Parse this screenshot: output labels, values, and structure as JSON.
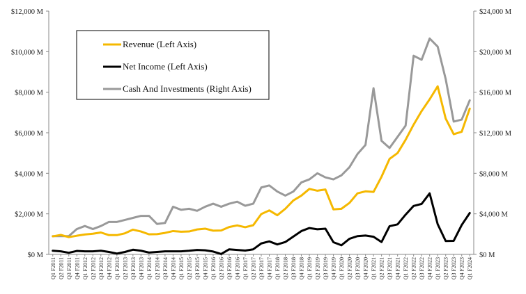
{
  "chart_data": {
    "type": "line",
    "title": "",
    "xlabel": "",
    "ylabel": "",
    "y2label": "",
    "categories": [
      "Q1 F2011",
      "Q2 F2011",
      "Q3 F2011",
      "Q4 F2011",
      "Q1 F2012",
      "Q2 F2012",
      "Q3 F2012",
      "Q4 F2012",
      "Q1 F2013",
      "Q2 F2013",
      "Q3 F2013",
      "Q4 F2013",
      "Q1 F2014",
      "Q2 F2014",
      "Q3 F2014",
      "Q4 F2014",
      "Q1 F2015",
      "Q2 F2015",
      "Q3 F2015",
      "Q4 F2015",
      "Q1 F2016",
      "Q2 F2016",
      "Q3 F2016",
      "Q4 F2016",
      "Q1 F2017",
      "Q2 F2017",
      "Q3 F2017",
      "Q4 F2017",
      "Q1 F2018",
      "Q2 F2018",
      "Q3 F2018",
      "Q4 F2018",
      "Q1 F2019",
      "Q2 F2019",
      "Q3 F2019",
      "Q4 F2019",
      "Q1 F2020",
      "Q2 F2020",
      "Q3 F2020",
      "Q4 F2020",
      "Q1 F2021",
      "Q2 F2021",
      "Q3 F2021",
      "Q4 F2021",
      "Q1 F2022",
      "Q2 F2022",
      "Q3 F2022",
      "Q4 F2022",
      "Q1 F2023",
      "Q2 F2023",
      "Q3 F2023",
      "Q4 F2023",
      "Q1 F2024"
    ],
    "xtick_labels": [
      "Q1 F2011",
      "Q2 F2011",
      "Q3 F2011",
      "Q4 F2011",
      "Q1 F2012",
      "Q2 F2012",
      "Q3 F2012",
      "Q4 F2012",
      "Q1 F2013",
      "Q2 F2013",
      "Q3 F2013",
      "Q4 F2013",
      "Q1 F2014",
      "Q2 F2014",
      "Q3 F2014",
      "Q4 F2014",
      "Q1 F2015",
      "Q2 F2015",
      "Q3 F2015",
      "Q4 F2015",
      "Q1 F2016",
      "Q2 F2016",
      "Q3 F2016",
      "Q4 F2016",
      "Q1 F2017",
      "Q2 F2017",
      "Q3 F2017",
      "Q4 F2017",
      "Q1 F2018",
      "Q2 F2018",
      "Q3 F2018",
      "Q4 F2018",
      "Q1 F2019",
      "Q2 F2019",
      "Q3 F2019",
      "Q4 F2019",
      "Q1 F2020",
      "Q2 F2020",
      "Q3 F2020",
      "Q4 F2020",
      "Q1 F2021",
      "Q2 F2021",
      "Q3 F2021",
      "Q4 F2021",
      "Q1 F2022",
      "Q2 F2022",
      "Q3 F2022",
      "Q4 F2022",
      "Q1 F2023",
      "Q2 F2023",
      "Q3 F2023",
      "Q4 F2023",
      "Q1 F2024"
    ],
    "ylim": [
      0,
      12000
    ],
    "y2lim": [
      0,
      24000
    ],
    "y_ticks": [
      "$0 M",
      "$2,000 M",
      "$4,000 M",
      "$6,000 M",
      "$8,000 M",
      "$10,000 M",
      "$12,000 M"
    ],
    "y2_ticks": [
      "$0 M",
      "$4,000 M",
      "$8,000 M",
      "$12,000 M",
      "$16,000 M",
      "$20,000 M",
      "$24,000 M"
    ],
    "grid": false,
    "legend_position": "top-left",
    "series": [
      {
        "name": "Revenue (Left Axis)",
        "axis": "left",
        "color": "#f5b800",
        "values": [
          890,
          960,
          850,
          920,
          980,
          1020,
          1080,
          950,
          950,
          1040,
          1220,
          1130,
          990,
          1000,
          1060,
          1150,
          1120,
          1130,
          1230,
          1270,
          1170,
          1180,
          1350,
          1430,
          1340,
          1440,
          1990,
          2170,
          1930,
          2250,
          2660,
          2900,
          3230,
          3140,
          3200,
          2220,
          2250,
          2540,
          3010,
          3110,
          3080,
          3830,
          4710,
          5000,
          5650,
          6400,
          7070,
          7650,
          8290,
          6700,
          5930,
          6050,
          7190
        ]
      },
      {
        "name": "Net Income (Left Axis)",
        "axis": "left",
        "color": "#000000",
        "values": [
          180,
          150,
          80,
          170,
          150,
          150,
          180,
          120,
          40,
          120,
          230,
          180,
          90,
          120,
          150,
          150,
          150,
          180,
          220,
          200,
          140,
          20,
          250,
          220,
          190,
          250,
          540,
          640,
          490,
          610,
          880,
          1150,
          1300,
          1240,
          1270,
          600,
          450,
          770,
          900,
          930,
          870,
          610,
          1390,
          1480,
          1960,
          2390,
          2490,
          3010,
          1490,
          660,
          670,
          1450,
          2040
        ]
      },
      {
        "name": "Cash And Investments (Right Axis)",
        "axis": "right",
        "color": "#999999",
        "values": [
          1800,
          1800,
          1800,
          2500,
          2800,
          2500,
          2800,
          3200,
          3200,
          3400,
          3600,
          3800,
          3800,
          3000,
          3100,
          4700,
          4400,
          4500,
          4300,
          4700,
          5000,
          4700,
          5000,
          5200,
          4800,
          5000,
          6600,
          6800,
          6200,
          5800,
          6200,
          7100,
          7400,
          8000,
          7600,
          7400,
          7800,
          8600,
          9900,
          10800,
          16400,
          11200,
          10500,
          11600,
          12700,
          19600,
          19200,
          21300,
          20500,
          17300,
          13100,
          13300,
          15200
        ]
      }
    ]
  }
}
